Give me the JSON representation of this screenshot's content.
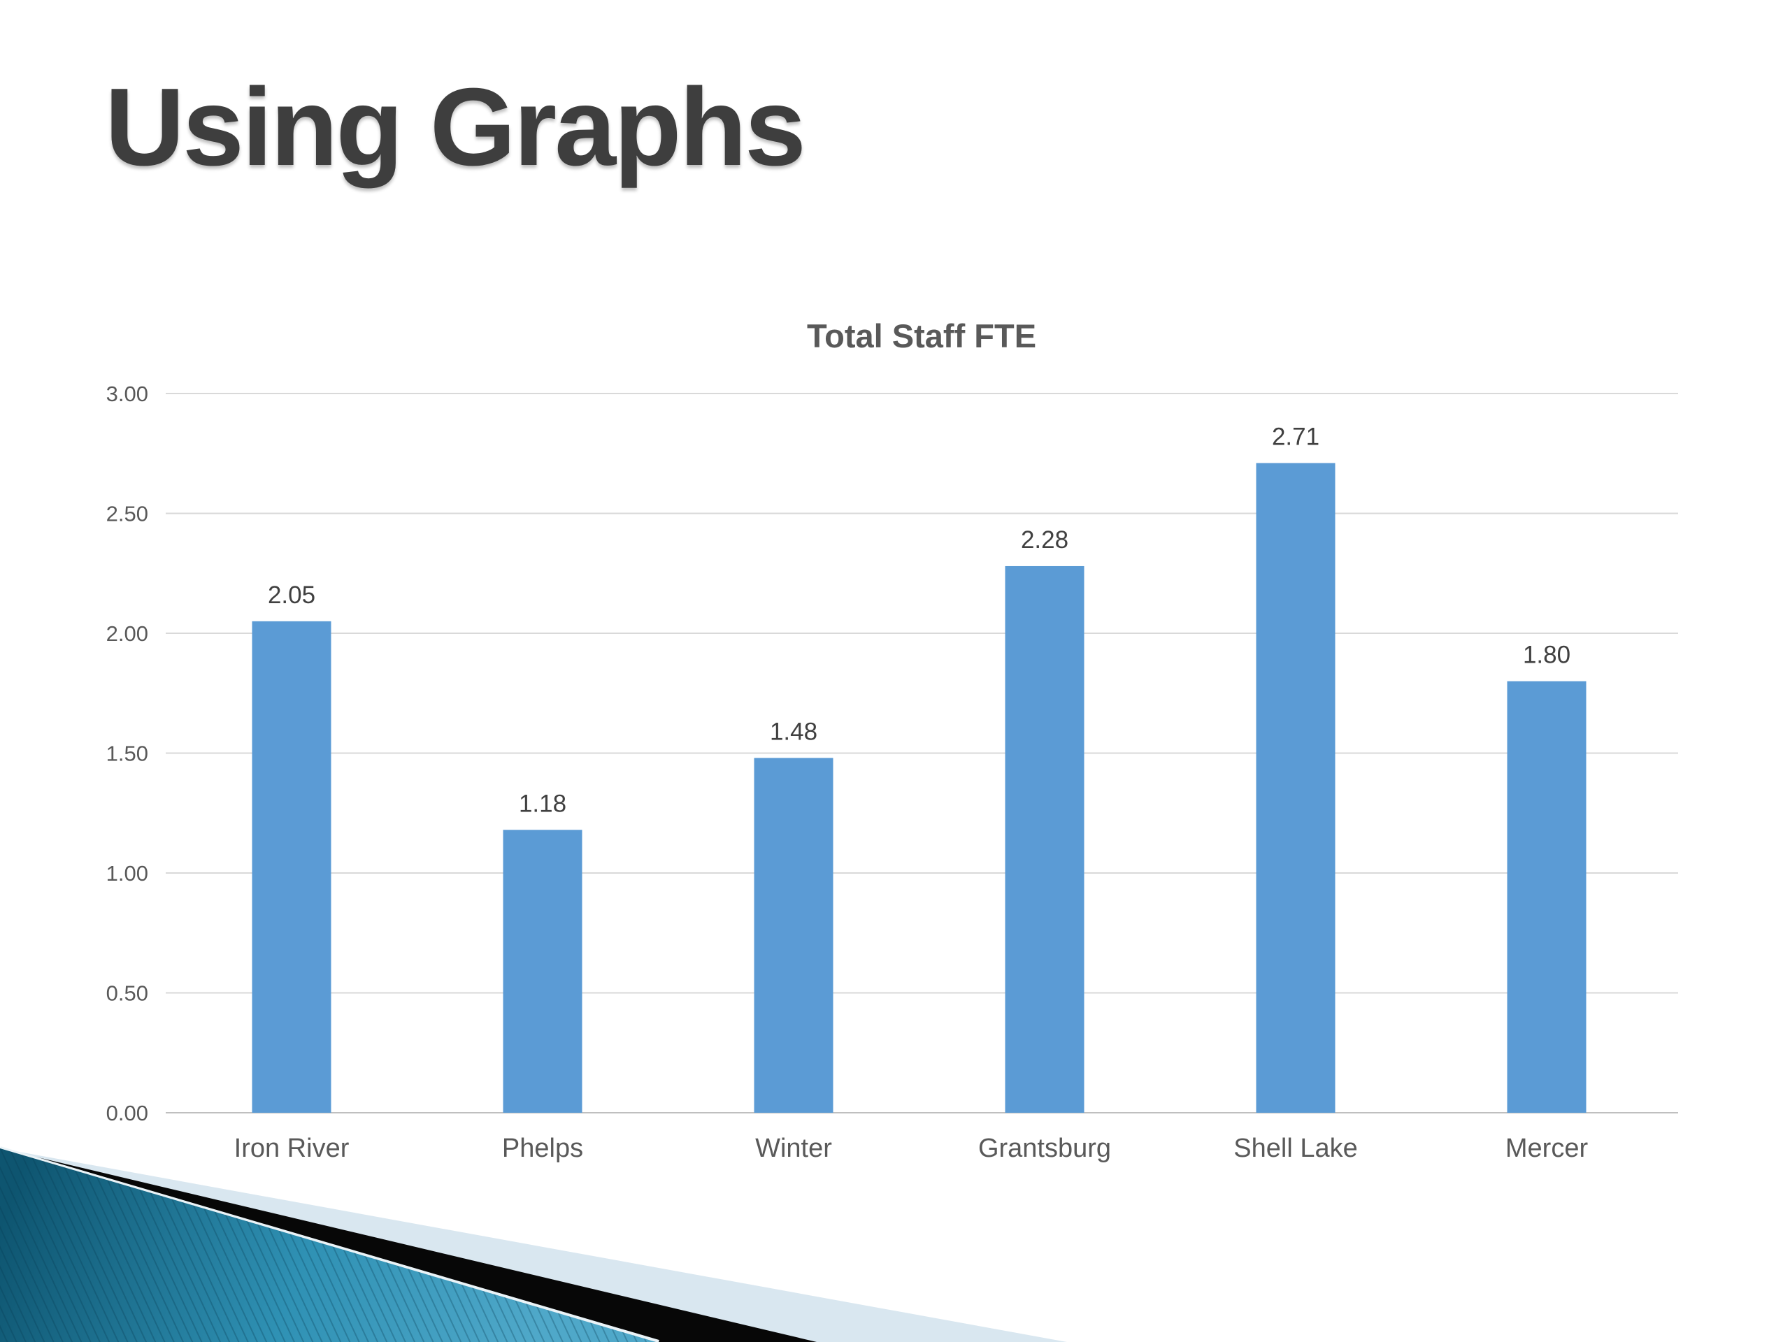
{
  "slide": {
    "title": "Using Graphs",
    "title_color": "#3E3E3E",
    "background_color": "#FFFFFF"
  },
  "chart_data": {
    "type": "bar",
    "title": "Total Staff FTE",
    "categories": [
      "Iron River",
      "Phelps",
      "Winter",
      "Grantsburg",
      "Shell Lake",
      "Mercer"
    ],
    "values": [
      2.05,
      1.18,
      1.48,
      2.28,
      2.71,
      1.8
    ],
    "value_labels": [
      "2.05",
      "1.18",
      "1.48",
      "2.28",
      "2.71",
      "1.80"
    ],
    "xlabel": "",
    "ylabel": "",
    "ylim": [
      0,
      3
    ],
    "ytick_interval": 0.5,
    "ytick_labels": [
      "0.00",
      "0.50",
      "1.00",
      "1.50",
      "2.00",
      "2.50",
      "3.00"
    ],
    "grid": true,
    "legend": false,
    "colors": {
      "bar": "#5B9BD5",
      "gridline": "#D9D9D9",
      "baseline": "#BFBFBF",
      "tick_label": "#595959",
      "category_label": "#595959",
      "value_label": "#404040",
      "chart_title": "#595959"
    }
  },
  "decoration": {
    "teal_gradient": [
      "#0E5570",
      "#2F91B4",
      "#4FA8C9"
    ],
    "pinstripe_color": "#063C54",
    "black_color": "#070707",
    "pale_color": "#D9E7F0",
    "separator_color": "#EAF3F7"
  }
}
